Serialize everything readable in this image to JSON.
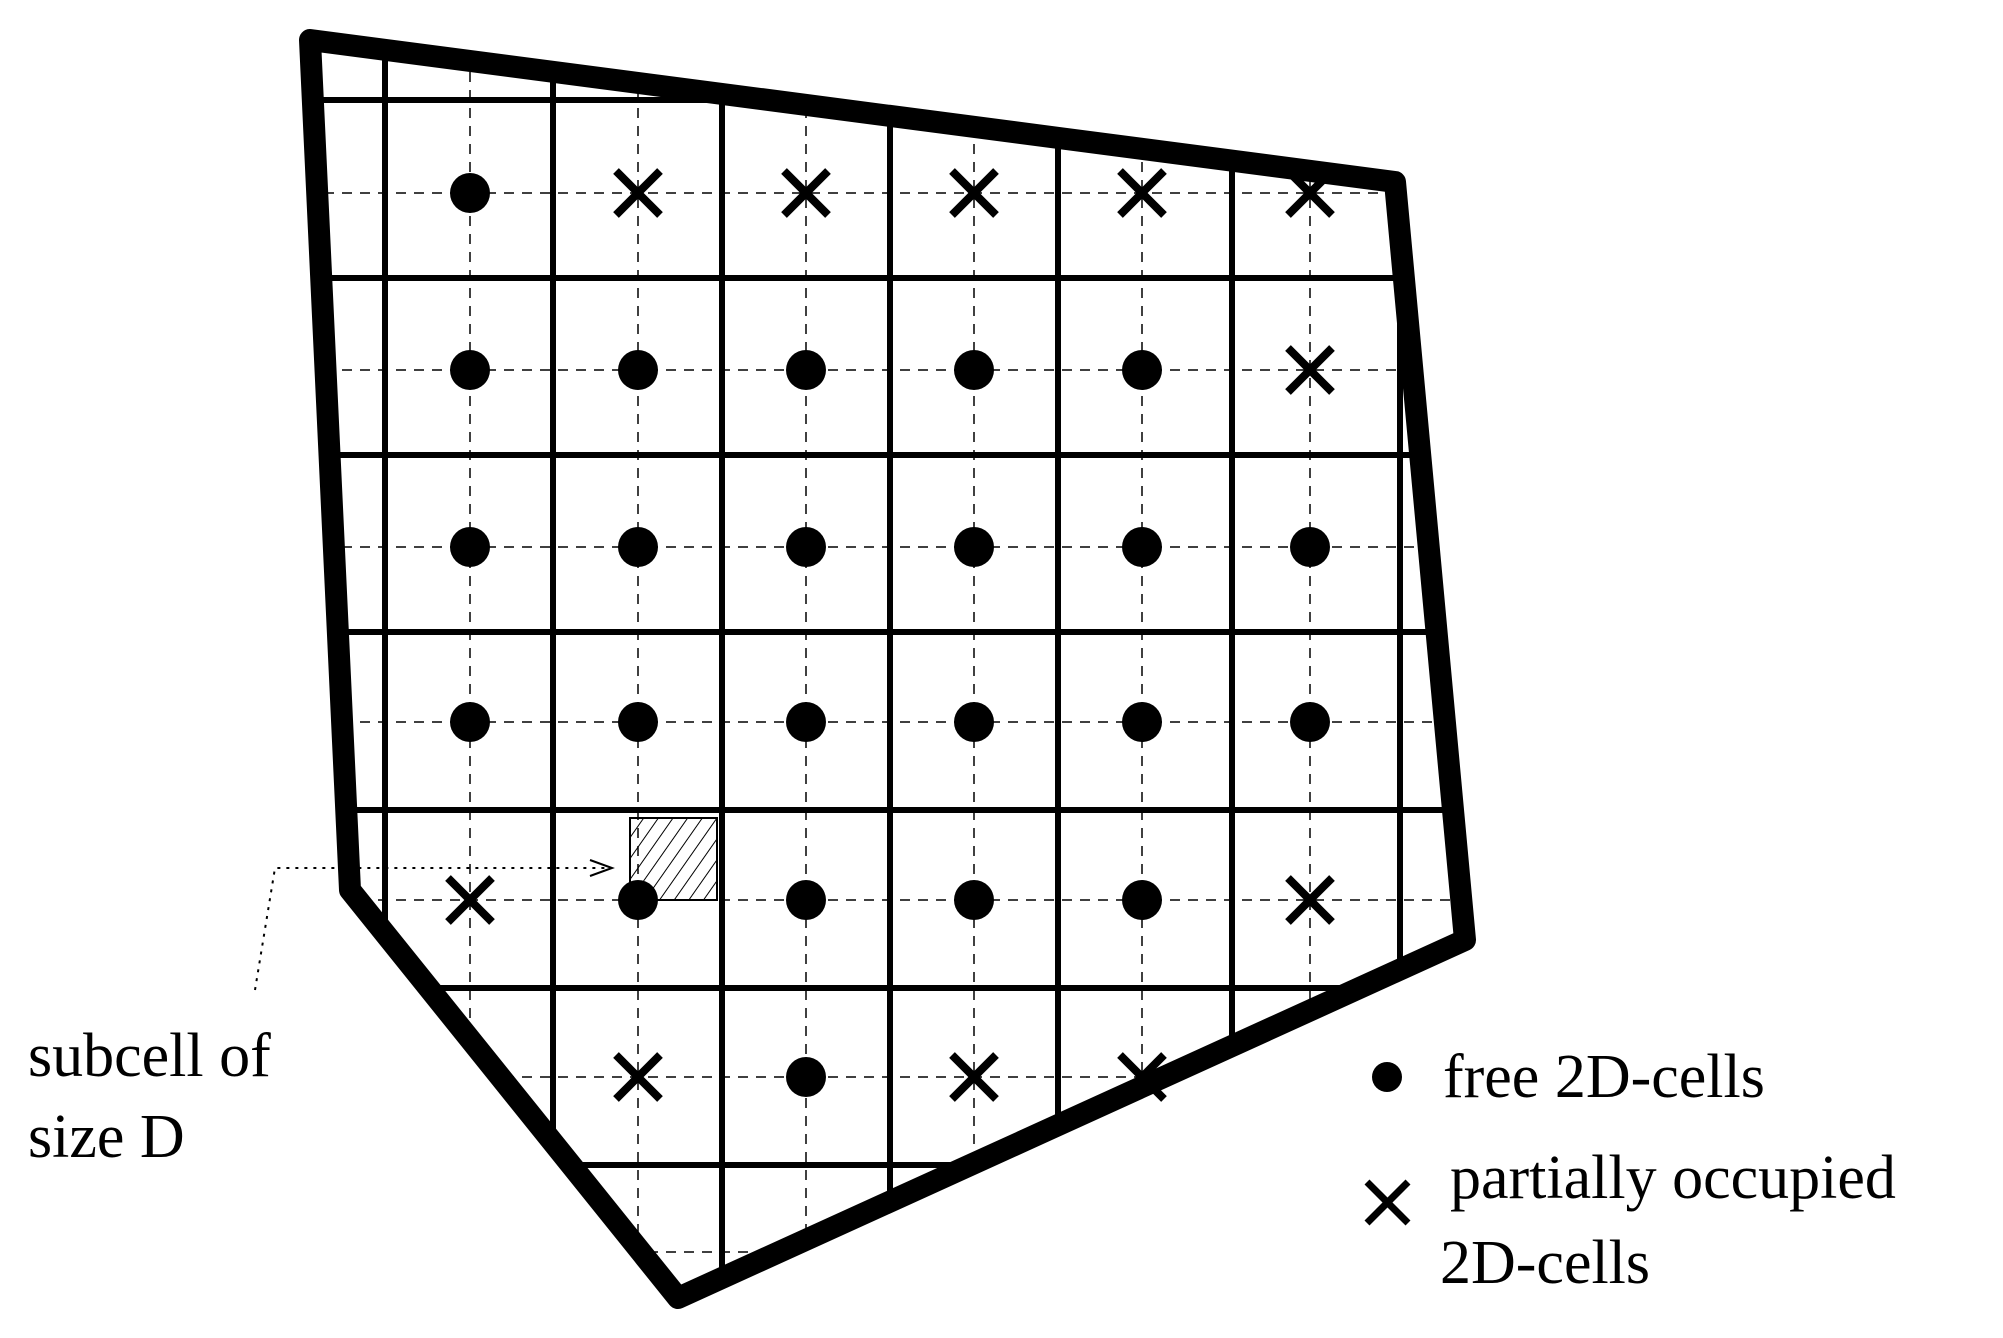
{
  "diagram": {
    "annotation": {
      "line1": "subcell of",
      "line2": "size D"
    },
    "legend": {
      "free_label": "free 2D-cells",
      "partial_label_line1": "partially occupied",
      "partial_label_line2": "2D-cells",
      "free_symbol": "dot-icon",
      "partial_symbol": "cross-icon"
    },
    "grid": {
      "columns": 6,
      "rows": 7,
      "cells": [
        [
          "free",
          "partial",
          "partial",
          "partial",
          "partial",
          "partial"
        ],
        [
          "free",
          "free",
          "free",
          "free",
          "free",
          "partial"
        ],
        [
          "free",
          "free",
          "free",
          "free",
          "free",
          "free"
        ],
        [
          "free",
          "free",
          "free",
          "free",
          "free",
          "free"
        ],
        [
          "partial",
          "free",
          "free",
          "free",
          "free",
          "partial"
        ],
        [
          "none",
          "partial",
          "free",
          "partial",
          "partial",
          "none"
        ],
        [
          "none",
          "none",
          "none",
          "none",
          "none",
          "none"
        ]
      ]
    },
    "colors": {
      "ink": "#000000",
      "background": "#ffffff"
    }
  }
}
